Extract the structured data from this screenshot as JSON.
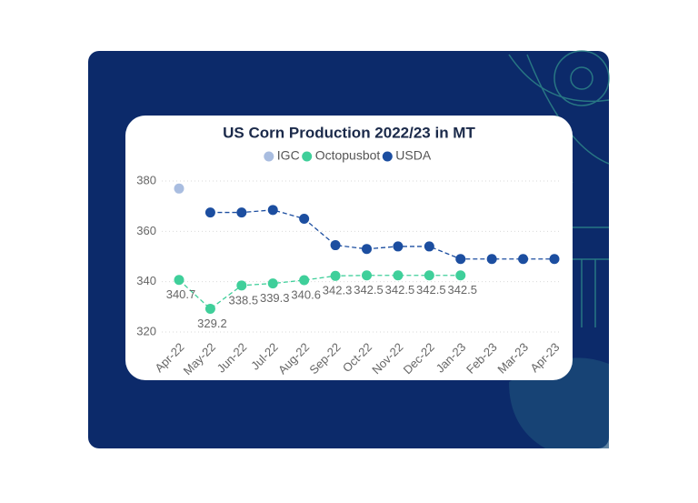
{
  "chart_data": {
    "type": "line",
    "title": "US Corn Production 2022/23 in MT",
    "categories": [
      "Apr-22",
      "May-22",
      "Jun-22",
      "Jul-22",
      "Aug-22",
      "Sep-22",
      "Oct-22",
      "Nov-22",
      "Dec-22",
      "Jan-23",
      "Feb-23",
      "Mar-23",
      "Apr-23"
    ],
    "series": [
      {
        "name": "IGC",
        "color": "#a9bde0",
        "values": [
          377,
          null,
          null,
          null,
          null,
          null,
          null,
          null,
          null,
          null,
          null,
          null,
          null
        ]
      },
      {
        "name": "Octopusbot",
        "color": "#3fcf9a",
        "data_labels": true,
        "values": [
          340.7,
          329.2,
          338.5,
          339.3,
          340.6,
          342.3,
          342.5,
          342.5,
          342.5,
          342.5,
          null,
          null,
          null
        ]
      },
      {
        "name": "USDA",
        "color": "#1c4ea0",
        "values": [
          null,
          367.5,
          367.5,
          368.5,
          365,
          354.5,
          353,
          354,
          354,
          349,
          349,
          349,
          349
        ]
      }
    ],
    "ylim": [
      320,
      380
    ],
    "yticks": [
      320,
      340,
      360,
      380
    ],
    "grid": true,
    "legend": "top"
  }
}
